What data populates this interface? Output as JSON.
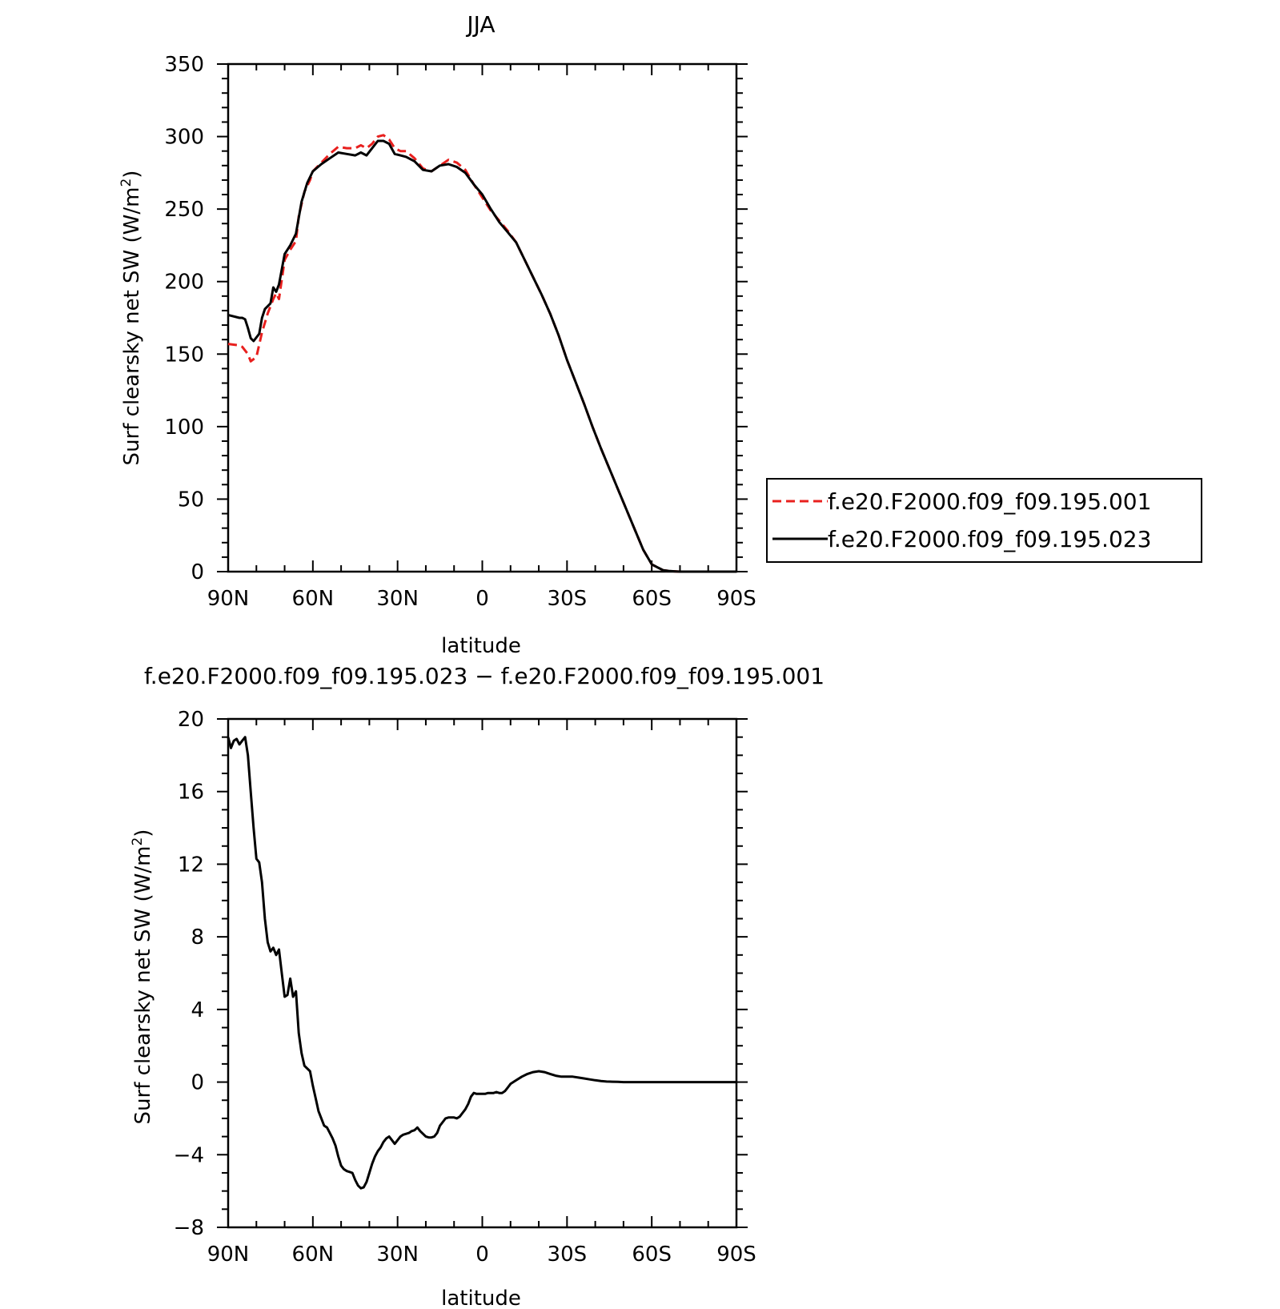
{
  "chart_data": [
    {
      "type": "line",
      "title": "JJA",
      "xlabel": "latitude",
      "ylabel": "Surf clearsky net SW (W/m²)",
      "ylabel_parts": {
        "main": "Surf clearsky net SW (W/m",
        "sup": "2",
        "end": ")"
      },
      "xlim": [
        90,
        -90
      ],
      "ylim": [
        0,
        350
      ],
      "x_ticks": [
        90,
        60,
        30,
        0,
        -30,
        -60,
        -90
      ],
      "x_tick_labels": [
        "90N",
        "60N",
        "30N",
        "0",
        "30S",
        "60S",
        "90S"
      ],
      "y_ticks": [
        0,
        50,
        100,
        150,
        200,
        250,
        300,
        350
      ],
      "y_tick_labels": [
        "0",
        "50",
        "100",
        "150",
        "200",
        "250",
        "300",
        "350"
      ],
      "legend_position": "right",
      "series": [
        {
          "name": "f.e20.F2000.f09_f09.195.001",
          "color": "#e8201e",
          "dash": "dashed",
          "x": [
            90,
            86,
            85,
            83,
            82,
            80,
            78,
            76,
            74,
            73,
            72,
            70,
            68,
            66,
            65,
            63,
            61,
            60,
            57,
            54,
            51,
            48,
            45,
            43,
            41,
            39,
            37,
            35,
            33,
            31,
            29,
            27,
            24,
            21,
            18,
            15,
            12,
            9,
            6,
            3,
            0,
            -3,
            -6,
            -9,
            -12,
            -15,
            -18,
            -21,
            -24,
            -27,
            -30,
            -33,
            -36,
            -39,
            -42,
            -45,
            -48,
            -51,
            -54,
            -57,
            -60,
            -62,
            -63,
            -64,
            -66,
            -68,
            -70,
            -75,
            -80,
            -90
          ],
          "y": [
            157,
            156,
            155,
            150,
            145,
            148,
            165,
            178,
            188,
            192,
            188,
            215,
            222,
            228,
            245,
            262,
            270,
            276,
            282,
            288,
            293,
            292,
            292,
            294,
            292,
            295,
            300,
            301,
            298,
            292,
            290,
            290,
            285,
            278,
            276,
            280,
            284,
            282,
            277,
            267,
            258,
            249,
            242,
            235,
            227,
            215,
            203,
            191,
            178,
            163,
            146,
            131,
            116,
            100,
            85,
            71,
            57,
            43,
            29,
            15,
            5,
            3,
            2,
            1,
            0.5,
            0.2,
            0,
            0,
            0,
            0
          ]
        },
        {
          "name": "f.e20.F2000.f09_f09.195.023",
          "color": "#000000",
          "dash": "solid",
          "x": [
            90,
            86,
            85,
            84,
            83,
            82,
            81,
            79,
            78,
            77,
            75,
            74,
            73,
            72,
            70,
            68,
            66,
            64,
            62,
            60,
            57,
            54,
            51,
            48,
            45,
            43,
            41,
            39,
            37,
            35,
            33,
            31,
            29,
            27,
            24,
            21,
            18,
            15,
            12,
            9,
            6,
            3,
            0,
            -3,
            -6,
            -9,
            -12,
            -15,
            -18,
            -21,
            -24,
            -27,
            -30,
            -33,
            -36,
            -39,
            -42,
            -45,
            -48,
            -51,
            -54,
            -57,
            -60,
            -62,
            -63,
            -64,
            -66,
            -68,
            -70,
            -75,
            -80,
            -90
          ],
          "y": [
            177,
            175,
            175,
            174,
            168,
            161,
            159,
            164,
            175,
            181,
            185,
            196,
            193,
            198,
            219,
            225,
            233,
            255,
            268,
            276,
            281,
            285,
            289,
            288,
            287,
            289,
            287,
            292,
            297,
            297,
            295,
            288,
            287,
            286,
            283,
            277,
            276,
            280,
            281,
            279,
            275,
            267,
            260,
            250,
            241,
            234,
            227,
            215,
            203,
            191,
            178,
            163,
            146,
            131,
            116,
            100,
            85,
            71,
            57,
            43,
            29,
            15,
            5,
            3,
            2,
            1,
            0.5,
            0.2,
            0,
            0,
            0,
            0
          ]
        }
      ]
    },
    {
      "type": "line",
      "title": "f.e20.F2000.f09_f09.195.023 − f.e20.F2000.f09_f09.195.001",
      "xlabel": "latitude",
      "ylabel": "Surf clearsky net SW (W/m²)",
      "ylabel_parts": {
        "main": "Surf clearsky net SW (W/m",
        "sup": "2",
        "end": ")"
      },
      "xlim": [
        90,
        -90
      ],
      "ylim": [
        -8,
        20
      ],
      "x_ticks": [
        90,
        60,
        30,
        0,
        -30,
        -60,
        -90
      ],
      "x_tick_labels": [
        "90N",
        "60N",
        "30N",
        "0",
        "30S",
        "60S",
        "90S"
      ],
      "y_ticks": [
        -8,
        -4,
        0,
        4,
        8,
        12,
        16,
        20
      ],
      "y_tick_labels": [
        "−8",
        "−4",
        "0",
        "4",
        "8",
        "12",
        "16",
        "20"
      ],
      "series": [
        {
          "color": "#000000",
          "dash": "solid",
          "x": [
            90,
            89,
            88,
            87,
            86,
            85,
            84,
            83,
            82,
            81,
            80,
            79,
            78,
            77,
            76,
            75,
            74,
            73,
            72,
            71,
            70,
            69,
            68,
            67,
            66,
            65,
            64,
            63,
            61,
            60,
            59,
            58,
            57,
            56,
            55,
            54,
            53,
            52,
            51,
            50,
            49,
            48,
            47,
            46,
            45,
            44,
            43,
            42,
            41,
            40,
            39,
            38,
            37,
            36,
            35,
            34,
            33,
            32,
            31,
            30,
            29,
            28,
            27,
            26,
            25,
            24,
            23,
            22,
            21,
            20,
            19,
            18,
            17,
            16,
            15,
            14,
            13,
            12,
            11,
            10,
            9,
            8,
            7,
            6,
            5,
            4,
            3,
            2,
            1,
            0,
            -1,
            -2,
            -3,
            -4,
            -5,
            -6,
            -7,
            -8,
            -9,
            -10,
            -12,
            -14,
            -16,
            -18,
            -20,
            -22,
            -24,
            -26,
            -28,
            -30,
            -32,
            -34,
            -36,
            -38,
            -40,
            -42,
            -44,
            -46,
            -48,
            -50,
            -52,
            -54,
            -56,
            -58,
            -60,
            -62,
            -64,
            -66,
            -68,
            -70,
            -75,
            -80,
            -90
          ],
          "y": [
            19.0,
            18.4,
            18.8,
            18.9,
            18.6,
            18.8,
            19.0,
            18.0,
            16.0,
            14.0,
            12.3,
            12.1,
            11.0,
            9.0,
            7.7,
            7.2,
            7.4,
            7.0,
            7.3,
            6.0,
            4.7,
            4.8,
            5.7,
            4.7,
            5.0,
            2.7,
            1.6,
            0.9,
            0.6,
            -0.2,
            -0.9,
            -1.6,
            -2.0,
            -2.4,
            -2.5,
            -2.8,
            -3.1,
            -3.5,
            -4.1,
            -4.6,
            -4.8,
            -4.9,
            -4.95,
            -5.0,
            -5.4,
            -5.7,
            -5.85,
            -5.8,
            -5.5,
            -5.0,
            -4.5,
            -4.1,
            -3.8,
            -3.6,
            -3.3,
            -3.1,
            -3.0,
            -3.2,
            -3.4,
            -3.2,
            -3.0,
            -2.9,
            -2.85,
            -2.8,
            -2.7,
            -2.65,
            -2.5,
            -2.7,
            -2.85,
            -3.0,
            -3.05,
            -3.05,
            -3.0,
            -2.8,
            -2.4,
            -2.2,
            -2.0,
            -1.95,
            -1.95,
            -1.95,
            -2.0,
            -1.9,
            -1.7,
            -1.5,
            -1.2,
            -0.8,
            -0.6,
            -0.65,
            -0.65,
            -0.65,
            -0.65,
            -0.6,
            -0.6,
            -0.6,
            -0.55,
            -0.6,
            -0.6,
            -0.5,
            -0.3,
            -0.1,
            0.1,
            0.3,
            0.45,
            0.55,
            0.6,
            0.55,
            0.45,
            0.35,
            0.3,
            0.3,
            0.3,
            0.25,
            0.2,
            0.15,
            0.1,
            0.06,
            0.03,
            0.02,
            0.01,
            0,
            0,
            0,
            0,
            0,
            0,
            0,
            0,
            0,
            0,
            0,
            0,
            0,
            0
          ]
        }
      ]
    }
  ]
}
